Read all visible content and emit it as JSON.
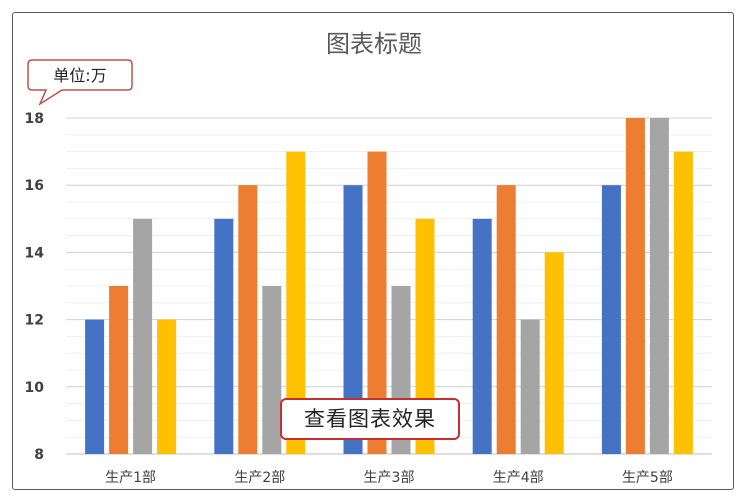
{
  "chart_data": {
    "type": "bar",
    "title": "图表标题",
    "xlabel": "",
    "ylabel": "",
    "unit_label": "单位:万",
    "categories": [
      "生产1部",
      "生产2部",
      "生产3部",
      "生产4部",
      "生产5部"
    ],
    "series": [
      {
        "values": [
          12,
          15,
          16,
          15,
          16
        ],
        "color": "#4472C4"
      },
      {
        "values": [
          13,
          16,
          17,
          16,
          18
        ],
        "color": "#ED7D31"
      },
      {
        "values": [
          15,
          13,
          13,
          12,
          18
        ],
        "color": "#A5A5A5"
      },
      {
        "values": [
          12,
          17,
          15,
          14,
          17
        ],
        "color": "#FFC000"
      }
    ],
    "ylim": [
      8,
      18
    ],
    "yticks": [
      8,
      10,
      12,
      14,
      16,
      18
    ],
    "grid": true,
    "legend": "none"
  },
  "overlay": {
    "button_label": "查看图表效果"
  },
  "colors": {
    "gridline": "#d9d9d9",
    "axis_text": "#404040",
    "title_text": "#595959",
    "callout_border": "#c0504d",
    "overlay_border": "#c62f2f"
  }
}
